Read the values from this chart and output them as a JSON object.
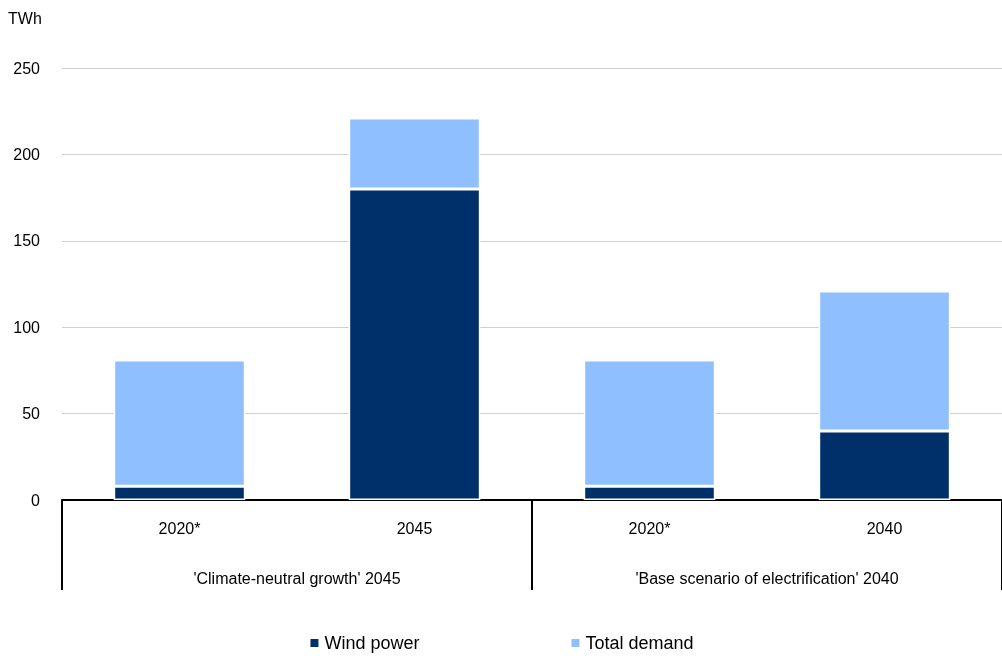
{
  "chart_data": {
    "type": "bar",
    "ylabel": "TWh",
    "categories": [
      "2020*",
      "2045",
      "2020*",
      "2040"
    ],
    "series": [
      {
        "name": "Wind power",
        "color": "#003069",
        "values": [
          8,
          180,
          8,
          40
        ]
      },
      {
        "name": "Total demand",
        "color": "#8fbfff",
        "values": [
          73,
          41,
          73,
          81
        ]
      }
    ],
    "stacked": true,
    "ylim": [
      0,
      250
    ],
    "yticks": [
      0,
      50,
      100,
      150,
      200,
      250
    ],
    "grid": "y",
    "legend": "bottom",
    "annotations": [
      "'Climate-neutral growth' 2045",
      "'Base scenario of electrification' 2040"
    ]
  }
}
